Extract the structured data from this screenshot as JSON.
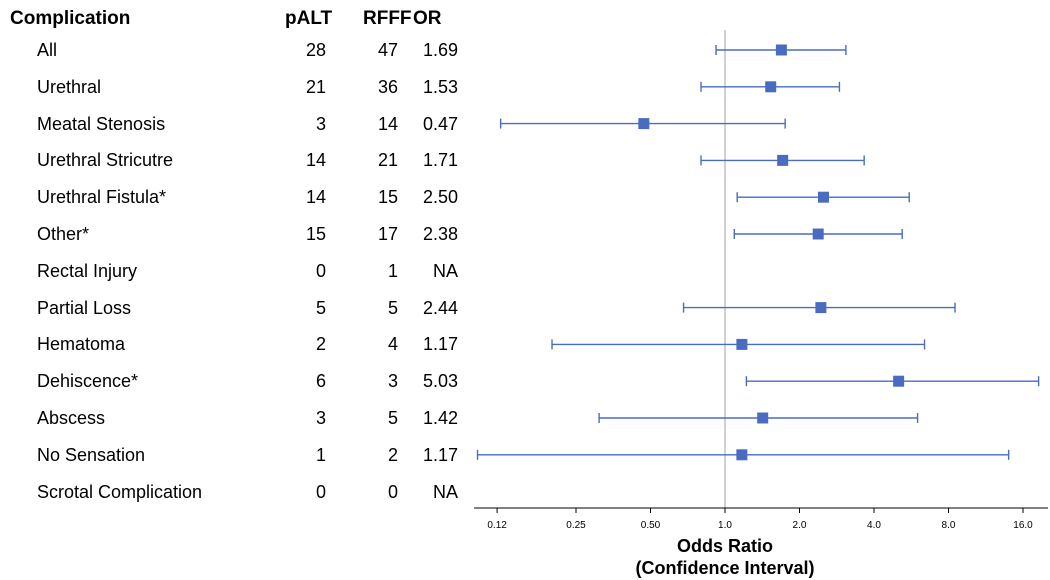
{
  "table": {
    "headers": {
      "complication": "Complication",
      "palt": "pALT",
      "rfff": "RFFF",
      "or": "OR"
    },
    "rows": [
      {
        "name": "All",
        "palt": "28",
        "rfff": "47",
        "or": "1.69"
      },
      {
        "name": "Urethral",
        "palt": "21",
        "rfff": "36",
        "or": "1.53"
      },
      {
        "name": "Meatal Stenosis",
        "palt": "3",
        "rfff": "14",
        "or": "0.47"
      },
      {
        "name": "Urethral Stricutre",
        "palt": "14",
        "rfff": "21",
        "or": "1.71"
      },
      {
        "name": "Urethral Fistula*",
        "palt": "14",
        "rfff": "15",
        "or": "2.50"
      },
      {
        "name": "Other*",
        "palt": "15",
        "rfff": "17",
        "or": "2.38"
      },
      {
        "name": "Rectal Injury",
        "palt": "0",
        "rfff": "1",
        "or": "NA"
      },
      {
        "name": "Partial Loss",
        "palt": "5",
        "rfff": "5",
        "or": "2.44"
      },
      {
        "name": "Hematoma",
        "palt": "2",
        "rfff": "4",
        "or": "1.17"
      },
      {
        "name": "Dehiscence*",
        "palt": "6",
        "rfff": "3",
        "or": "5.03"
      },
      {
        "name": "Abscess",
        "palt": "3",
        "rfff": "5",
        "or": "1.42"
      },
      {
        "name": "No Sensation",
        "palt": "1",
        "rfff": "2",
        "or": "1.17"
      },
      {
        "name": "Scrotal Complication",
        "palt": "0",
        "rfff": "0",
        "or": "NA"
      }
    ]
  },
  "chart_data": {
    "type": "forest",
    "xscale": "log2",
    "xlim": [
      0.1,
      18.5
    ],
    "reference_line": 1.0,
    "xlabel_line1": "Odds Ratio",
    "xlabel_line2": "(Confidence Interval)",
    "ticks": [
      0.12,
      0.25,
      0.5,
      1.0,
      2.0,
      4.0,
      8.0,
      16.0
    ],
    "tick_labels": [
      "0.12",
      "0.25",
      "0.50",
      "1.0",
      "2.0",
      "4.0",
      "8.0",
      "16.0"
    ],
    "colors": {
      "marker": "#4a6cc0",
      "reference": "#c0c0c0",
      "axis": "#000000"
    },
    "points": [
      {
        "label": "All",
        "or": 1.69,
        "lo": 0.92,
        "hi": 3.08
      },
      {
        "label": "Urethral",
        "or": 1.53,
        "lo": 0.8,
        "hi": 2.9
      },
      {
        "label": "Meatal Stenosis",
        "or": 0.47,
        "lo": 0.124,
        "hi": 1.75
      },
      {
        "label": "Urethral Stricutre",
        "or": 1.71,
        "lo": 0.8,
        "hi": 3.65
      },
      {
        "label": "Urethral Fistula*",
        "or": 2.5,
        "lo": 1.12,
        "hi": 5.55
      },
      {
        "label": "Other*",
        "or": 2.38,
        "lo": 1.09,
        "hi": 5.2
      },
      {
        "label": "Rectal Injury",
        "or": null,
        "lo": null,
        "hi": null
      },
      {
        "label": "Partial Loss",
        "or": 2.44,
        "lo": 0.68,
        "hi": 8.5
      },
      {
        "label": "Hematoma",
        "or": 1.17,
        "lo": 0.2,
        "hi": 6.4
      },
      {
        "label": "Dehiscence*",
        "or": 5.03,
        "lo": 1.22,
        "hi": 18.5
      },
      {
        "label": "Abscess",
        "or": 1.42,
        "lo": 0.31,
        "hi": 6.0
      },
      {
        "label": "No Sensation",
        "or": 1.17,
        "lo": 0.1,
        "hi": 14.0
      },
      {
        "label": "Scrotal Complication",
        "or": null,
        "lo": null,
        "hi": null
      }
    ]
  }
}
